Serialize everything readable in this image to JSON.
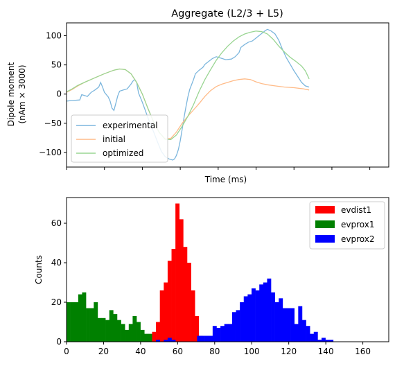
{
  "chart_data": [
    {
      "type": "line",
      "title": "Aggregate (L2/3 + L5)",
      "xlabel": "Time (ms)",
      "ylabel_lines": [
        "Dipole moment",
        "(nAm × 3000)"
      ],
      "xlim": [
        0,
        170
      ],
      "ylim": [
        -125,
        122
      ],
      "xticks": [
        0,
        20,
        40,
        60,
        80,
        100,
        120,
        140,
        160
      ],
      "yticks": [
        -100,
        -50,
        0,
        50,
        100
      ],
      "ytick_labels": [
        "−100",
        "−50",
        "0",
        "50",
        "100"
      ],
      "legend_position": "lower-left",
      "series": [
        {
          "name": "experimental",
          "color": "#7cb6dd",
          "points": [
            [
              0,
              -12
            ],
            [
              3,
              -11
            ],
            [
              7,
              -10
            ],
            [
              8,
              -1
            ],
            [
              9,
              -2
            ],
            [
              11,
              -4
            ],
            [
              13,
              3
            ],
            [
              14,
              5
            ],
            [
              15,
              7
            ],
            [
              17,
              12
            ],
            [
              18,
              20
            ],
            [
              19,
              12
            ],
            [
              20,
              3
            ],
            [
              22,
              -5
            ],
            [
              23,
              -12
            ],
            [
              24,
              -24
            ],
            [
              25,
              -28
            ],
            [
              26,
              -16
            ],
            [
              27,
              -3
            ],
            [
              28,
              5
            ],
            [
              30,
              7
            ],
            [
              32,
              9
            ],
            [
              34,
              17
            ],
            [
              35,
              22
            ],
            [
              36,
              25
            ],
            [
              37,
              20
            ],
            [
              38,
              2
            ],
            [
              40,
              -14
            ],
            [
              42,
              -32
            ],
            [
              44,
              -50
            ],
            [
              46,
              -65
            ],
            [
              48,
              -82
            ],
            [
              50,
              -98
            ],
            [
              52,
              -107
            ],
            [
              54,
              -111
            ],
            [
              56,
              -113
            ],
            [
              57,
              -111
            ],
            [
              58,
              -105
            ],
            [
              59,
              -95
            ],
            [
              60,
              -80
            ],
            [
              61,
              -60
            ],
            [
              62,
              -40
            ],
            [
              63,
              -22
            ],
            [
              64,
              -5
            ],
            [
              65,
              8
            ],
            [
              67,
              25
            ],
            [
              68,
              35
            ],
            [
              70,
              41
            ],
            [
              72,
              46
            ],
            [
              73,
              51
            ],
            [
              75,
              56
            ],
            [
              77,
              61
            ],
            [
              79,
              64
            ],
            [
              81,
              62
            ],
            [
              84,
              59
            ],
            [
              87,
              60
            ],
            [
              89,
              64
            ],
            [
              91,
              71
            ],
            [
              92,
              80
            ],
            [
              94,
              85
            ],
            [
              96,
              89
            ],
            [
              98,
              91
            ],
            [
              100,
              96
            ],
            [
              103,
              104
            ],
            [
              105,
              109
            ],
            [
              106,
              111
            ],
            [
              108,
              108
            ],
            [
              110,
              103
            ],
            [
              112,
              92
            ],
            [
              114,
              76
            ],
            [
              116,
              62
            ],
            [
              118,
              51
            ],
            [
              120,
              40
            ],
            [
              122,
              30
            ],
            [
              124,
              20
            ],
            [
              126,
              14
            ],
            [
              128,
              12
            ]
          ]
        },
        {
          "name": "initial",
          "color": "#ffbb88",
          "points": [
            [
              0,
              3
            ],
            [
              3,
              8
            ],
            [
              6,
              14
            ],
            [
              10,
              21
            ],
            [
              15,
              28
            ],
            [
              20,
              35
            ],
            [
              25,
              41
            ],
            [
              28,
              43
            ],
            [
              31,
              42
            ],
            [
              34,
              35
            ],
            [
              37,
              20
            ],
            [
              40,
              0
            ],
            [
              43,
              -25
            ],
            [
              46,
              -48
            ],
            [
              49,
              -66
            ],
            [
              52,
              -77
            ],
            [
              55,
              -76
            ],
            [
              58,
              -65
            ],
            [
              61,
              -50
            ],
            [
              64,
              -38
            ],
            [
              67,
              -27
            ],
            [
              70,
              -16
            ],
            [
              73,
              -4
            ],
            [
              76,
              6
            ],
            [
              79,
              13
            ],
            [
              82,
              17
            ],
            [
              85,
              20
            ],
            [
              88,
              23
            ],
            [
              91,
              25
            ],
            [
              94,
              26
            ],
            [
              97,
              25
            ],
            [
              100,
              21
            ],
            [
              103,
              18
            ],
            [
              106,
              16
            ],
            [
              110,
              14
            ],
            [
              115,
              12
            ],
            [
              120,
              11
            ],
            [
              125,
              9
            ],
            [
              128,
              7
            ]
          ]
        },
        {
          "name": "optimized",
          "color": "#99d592",
          "points": [
            [
              0,
              4
            ],
            [
              3,
              9
            ],
            [
              6,
              15
            ],
            [
              10,
              21
            ],
            [
              15,
              28
            ],
            [
              20,
              35
            ],
            [
              25,
              41
            ],
            [
              28,
              43
            ],
            [
              31,
              42
            ],
            [
              34,
              35
            ],
            [
              37,
              20
            ],
            [
              40,
              0
            ],
            [
              43,
              -25
            ],
            [
              46,
              -48
            ],
            [
              49,
              -66
            ],
            [
              52,
              -77
            ],
            [
              55,
              -78
            ],
            [
              58,
              -70
            ],
            [
              61,
              -55
            ],
            [
              64,
              -38
            ],
            [
              67,
              -18
            ],
            [
              70,
              5
            ],
            [
              73,
              25
            ],
            [
              76,
              42
            ],
            [
              79,
              58
            ],
            [
              82,
              71
            ],
            [
              85,
              82
            ],
            [
              88,
              91
            ],
            [
              91,
              98
            ],
            [
              94,
              103
            ],
            [
              97,
              106
            ],
            [
              100,
              108
            ],
            [
              103,
              107
            ],
            [
              106,
              103
            ],
            [
              109,
              94
            ],
            [
              112,
              82
            ],
            [
              115,
              72
            ],
            [
              118,
              63
            ],
            [
              121,
              56
            ],
            [
              124,
              48
            ],
            [
              126,
              40
            ],
            [
              128,
              26
            ]
          ]
        }
      ]
    },
    {
      "type": "bar",
      "xlabel": "",
      "ylabel": "Counts",
      "xlim": [
        0,
        174
      ],
      "ylim": [
        0,
        73
      ],
      "xticks": [
        0,
        20,
        40,
        60,
        80,
        100,
        120,
        140,
        160
      ],
      "yticks": [
        0,
        20,
        40,
        60
      ],
      "bin_width": 2.1,
      "legend_position": "top-right",
      "series": [
        {
          "name": "evprox1",
          "color": "#008000",
          "bins": [
            [
              0,
              20
            ],
            [
              2.1,
              20
            ],
            [
              4.2,
              20
            ],
            [
              6.3,
              24
            ],
            [
              8.4,
              25
            ],
            [
              10.5,
              17
            ],
            [
              12.6,
              17
            ],
            [
              14.7,
              20
            ],
            [
              16.8,
              12
            ],
            [
              18.9,
              12
            ],
            [
              21,
              11
            ],
            [
              23.1,
              16
            ],
            [
              25.2,
              14
            ],
            [
              27.3,
              11
            ],
            [
              29.4,
              9
            ],
            [
              31.5,
              6
            ],
            [
              33.6,
              9
            ],
            [
              35.7,
              13
            ],
            [
              37.8,
              10
            ],
            [
              39.9,
              6
            ],
            [
              42,
              4
            ],
            [
              44.1,
              4
            ],
            [
              46.2,
              0
            ],
            [
              48.3,
              0
            ],
            [
              50.4,
              2
            ],
            [
              52.5,
              2
            ],
            [
              54.6,
              1
            ]
          ]
        },
        {
          "name": "evdist1",
          "color": "#ff0000",
          "bins": [
            [
              46.2,
              5
            ],
            [
              48.3,
              10
            ],
            [
              50.4,
              26
            ],
            [
              52.5,
              30
            ],
            [
              54.6,
              41
            ],
            [
              56.7,
              47
            ],
            [
              58.8,
              70
            ],
            [
              60.9,
              62
            ],
            [
              63,
              48
            ],
            [
              65.1,
              40
            ],
            [
              67.2,
              26
            ],
            [
              69.3,
              13
            ],
            [
              71.4,
              3
            ]
          ]
        },
        {
          "name": "evprox2",
          "color": "#0000ff",
          "bins": [
            [
              48.3,
              1
            ],
            [
              52.5,
              1
            ],
            [
              54.6,
              2
            ],
            [
              56.7,
              1
            ],
            [
              70.5,
              3
            ],
            [
              72.6,
              3
            ],
            [
              74.7,
              3
            ],
            [
              76.8,
              3
            ],
            [
              78.9,
              8
            ],
            [
              81,
              7
            ],
            [
              83.1,
              8
            ],
            [
              85.2,
              9
            ],
            [
              87.3,
              9
            ],
            [
              89.4,
              15
            ],
            [
              91.5,
              16
            ],
            [
              93.6,
              20
            ],
            [
              95.7,
              23
            ],
            [
              97.8,
              24
            ],
            [
              99.9,
              27
            ],
            [
              102,
              26
            ],
            [
              104.1,
              29
            ],
            [
              106.2,
              30
            ],
            [
              108.3,
              32
            ],
            [
              110.4,
              25
            ],
            [
              112.5,
              20
            ],
            [
              114.6,
              22
            ],
            [
              116.7,
              17
            ],
            [
              118.8,
              17
            ],
            [
              120.9,
              17
            ],
            [
              123,
              9
            ],
            [
              125.1,
              18
            ],
            [
              127.2,
              11
            ],
            [
              129.3,
              8
            ],
            [
              131.4,
              4
            ],
            [
              133.5,
              5
            ],
            [
              135.6,
              1
            ],
            [
              137.7,
              2
            ],
            [
              139.8,
              1
            ],
            [
              141.9,
              1
            ]
          ]
        }
      ]
    }
  ]
}
